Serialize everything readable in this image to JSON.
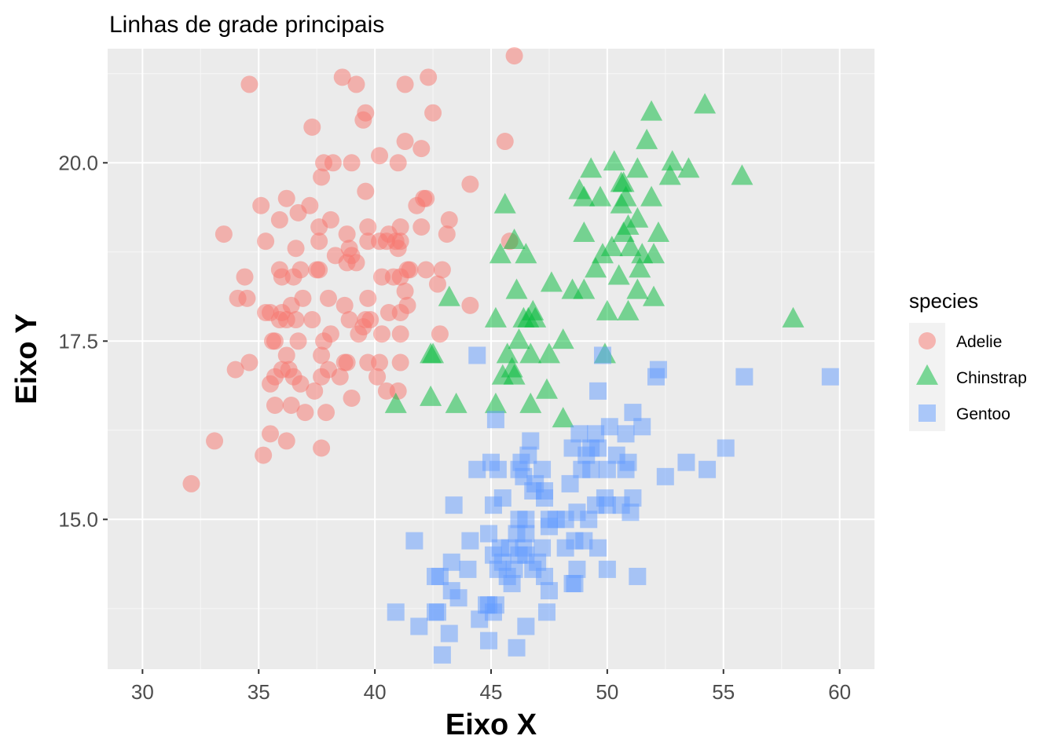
{
  "chart_data": {
    "type": "scatter",
    "title": "Linhas de grade principais",
    "xlabel": "Eixo X",
    "ylabel": "Eixo Y",
    "xlim": [
      28.5,
      61.5
    ],
    "ylim": [
      12.9,
      21.6
    ],
    "x_ticks": [
      30,
      35,
      40,
      45,
      50,
      55,
      60
    ],
    "x_tick_labels": [
      "30",
      "35",
      "40",
      "45",
      "50",
      "55",
      "60"
    ],
    "y_ticks": [
      15.0,
      17.5,
      20.0
    ],
    "y_tick_labels": [
      "15.0",
      "17.5",
      "20.0"
    ],
    "grid": true,
    "legend_title": "species",
    "legend_position": "right",
    "background": "#ebebeb",
    "series": [
      {
        "name": "Adelie",
        "shape": "circle",
        "color": "#f8766d",
        "points": [
          [
            46.0,
            21.5
          ],
          [
            38.6,
            21.2
          ],
          [
            34.6,
            21.1
          ],
          [
            39.2,
            21.1
          ],
          [
            41.3,
            21.1
          ],
          [
            42.3,
            21.2
          ],
          [
            39.6,
            20.7
          ],
          [
            42.5,
            20.7
          ],
          [
            39.5,
            20.6
          ],
          [
            37.3,
            20.5
          ],
          [
            45.6,
            20.3
          ],
          [
            41.3,
            20.3
          ],
          [
            42.0,
            20.2
          ],
          [
            40.2,
            20.1
          ],
          [
            37.8,
            20.0
          ],
          [
            38.2,
            20.0
          ],
          [
            39.0,
            20.0
          ],
          [
            41.0,
            20.0
          ],
          [
            37.7,
            19.8
          ],
          [
            44.1,
            19.7
          ],
          [
            39.6,
            19.6
          ],
          [
            36.2,
            19.5
          ],
          [
            42.1,
            19.5
          ],
          [
            42.2,
            19.5
          ],
          [
            35.1,
            19.4
          ],
          [
            37.2,
            19.4
          ],
          [
            41.8,
            19.4
          ],
          [
            36.7,
            19.3
          ],
          [
            38.1,
            19.2
          ],
          [
            35.9,
            19.2
          ],
          [
            43.2,
            19.2
          ],
          [
            42.0,
            19.1
          ],
          [
            37.6,
            19.1
          ],
          [
            39.7,
            19.1
          ],
          [
            41.1,
            19.1
          ],
          [
            40.6,
            19.0
          ],
          [
            33.5,
            19.0
          ],
          [
            38.8,
            19.0
          ],
          [
            43.1,
            19.0
          ],
          [
            41.1,
            18.9
          ],
          [
            35.3,
            18.9
          ],
          [
            40.2,
            18.9
          ],
          [
            37.6,
            18.9
          ],
          [
            40.5,
            18.9
          ],
          [
            39.7,
            18.9
          ],
          [
            40.9,
            18.9
          ],
          [
            36.6,
            18.8
          ],
          [
            38.9,
            18.8
          ],
          [
            45.8,
            18.9
          ],
          [
            41.0,
            18.8
          ],
          [
            38.3,
            18.7
          ],
          [
            39.0,
            18.7
          ],
          [
            38.8,
            18.6
          ],
          [
            36.8,
            18.5
          ],
          [
            41.5,
            18.5
          ],
          [
            42.2,
            18.5
          ],
          [
            42.9,
            18.5
          ],
          [
            35.9,
            18.5
          ],
          [
            39.2,
            18.6
          ],
          [
            37.5,
            18.5
          ],
          [
            36.0,
            18.4
          ],
          [
            34.4,
            18.4
          ],
          [
            41.4,
            18.5
          ],
          [
            40.3,
            18.4
          ],
          [
            36.5,
            18.4
          ],
          [
            37.6,
            18.5
          ],
          [
            41.1,
            18.4
          ],
          [
            40.8,
            18.4
          ],
          [
            42.7,
            18.3
          ],
          [
            38.7,
            18.0
          ],
          [
            34.1,
            18.1
          ],
          [
            34.5,
            18.1
          ],
          [
            36.4,
            18.0
          ],
          [
            36.9,
            18.1
          ],
          [
            39.7,
            18.1
          ],
          [
            41.4,
            18.0
          ],
          [
            38.0,
            18.1
          ],
          [
            41.3,
            18.2
          ],
          [
            35.5,
            17.9
          ],
          [
            35.3,
            17.9
          ],
          [
            36.0,
            17.9
          ],
          [
            38.9,
            17.8
          ],
          [
            37.3,
            17.8
          ],
          [
            39.6,
            17.8
          ],
          [
            36.2,
            17.8
          ],
          [
            35.9,
            17.8
          ],
          [
            40.6,
            17.9
          ],
          [
            41.1,
            17.9
          ],
          [
            36.6,
            17.8
          ],
          [
            39.8,
            17.8
          ],
          [
            44.1,
            18.0
          ],
          [
            39.3,
            17.6
          ],
          [
            38.1,
            17.6
          ],
          [
            39.5,
            17.7
          ],
          [
            41.1,
            17.6
          ],
          [
            42.8,
            17.6
          ],
          [
            40.3,
            17.6
          ],
          [
            36.7,
            17.5
          ],
          [
            35.7,
            17.5
          ],
          [
            35.6,
            17.5
          ],
          [
            37.8,
            17.5
          ],
          [
            37.7,
            17.3
          ],
          [
            36.2,
            17.3
          ],
          [
            40.2,
            17.2
          ],
          [
            38.7,
            17.2
          ],
          [
            39.7,
            17.2
          ],
          [
            41.1,
            17.2
          ],
          [
            34.6,
            17.2
          ],
          [
            38.8,
            17.2
          ],
          [
            36.3,
            17.1
          ],
          [
            34.0,
            17.1
          ],
          [
            36.0,
            17.1
          ],
          [
            36.5,
            17.0
          ],
          [
            35.7,
            17.0
          ],
          [
            38.5,
            17.0
          ],
          [
            40.1,
            17.0
          ],
          [
            37.7,
            17.0
          ],
          [
            38.0,
            17.1
          ],
          [
            36.8,
            16.9
          ],
          [
            35.5,
            16.9
          ],
          [
            40.5,
            16.8
          ],
          [
            37.4,
            16.8
          ],
          [
            41.0,
            16.8
          ],
          [
            39.0,
            16.7
          ],
          [
            35.7,
            16.6
          ],
          [
            36.4,
            16.6
          ],
          [
            37.0,
            16.5
          ],
          [
            37.9,
            16.5
          ],
          [
            35.5,
            16.2
          ],
          [
            36.2,
            16.1
          ],
          [
            33.1,
            16.1
          ],
          [
            37.7,
            16.0
          ],
          [
            35.2,
            15.9
          ],
          [
            32.1,
            15.5
          ]
        ]
      },
      {
        "name": "Chinstrap",
        "shape": "triangle",
        "color": "#00ba38",
        "points": [
          [
            54.2,
            20.8
          ],
          [
            51.9,
            20.7
          ],
          [
            51.7,
            20.3
          ],
          [
            52.8,
            20.0
          ],
          [
            53.5,
            19.9
          ],
          [
            50.3,
            20.0
          ],
          [
            51.3,
            19.9
          ],
          [
            49.3,
            19.9
          ],
          [
            50.6,
            19.4
          ],
          [
            49.0,
            19.5
          ],
          [
            49.7,
            19.5
          ],
          [
            50.6,
            19.7
          ],
          [
            50.8,
            19.5
          ],
          [
            51.9,
            19.5
          ],
          [
            52.7,
            19.8
          ],
          [
            50.7,
            19.7
          ],
          [
            55.8,
            19.8
          ],
          [
            45.6,
            19.4
          ],
          [
            48.8,
            19.6
          ],
          [
            51.3,
            19.2
          ],
          [
            50.9,
            19.1
          ],
          [
            51.5,
            18.7
          ],
          [
            49.0,
            19.0
          ],
          [
            50.7,
            19.0
          ],
          [
            52.2,
            19.0
          ],
          [
            51.0,
            18.8
          ],
          [
            52.0,
            18.7
          ],
          [
            50.2,
            18.8
          ],
          [
            46.0,
            18.9
          ],
          [
            45.4,
            18.7
          ],
          [
            49.8,
            18.7
          ],
          [
            51.4,
            18.5
          ],
          [
            46.5,
            18.7
          ],
          [
            50.5,
            18.4
          ],
          [
            49.5,
            18.5
          ],
          [
            47.6,
            18.3
          ],
          [
            46.1,
            18.2
          ],
          [
            48.5,
            18.2
          ],
          [
            49.0,
            18.2
          ],
          [
            51.3,
            18.2
          ],
          [
            52.0,
            18.1
          ],
          [
            43.2,
            18.1
          ],
          [
            58.0,
            17.8
          ],
          [
            45.2,
            17.8
          ],
          [
            46.6,
            17.8
          ],
          [
            46.8,
            17.9
          ],
          [
            50.0,
            17.9
          ],
          [
            50.9,
            17.9
          ],
          [
            46.4,
            17.8
          ],
          [
            46.9,
            17.8
          ],
          [
            45.9,
            17.1
          ],
          [
            46.2,
            17.5
          ],
          [
            48.1,
            17.5
          ],
          [
            46.7,
            17.3
          ],
          [
            47.5,
            17.3
          ],
          [
            49.9,
            17.3
          ],
          [
            42.4,
            17.3
          ],
          [
            42.5,
            17.3
          ],
          [
            45.7,
            17.3
          ],
          [
            46.0,
            17.0
          ],
          [
            45.5,
            17.0
          ],
          [
            47.4,
            16.8
          ],
          [
            42.4,
            16.7
          ],
          [
            40.9,
            16.6
          ],
          [
            45.2,
            16.6
          ],
          [
            46.7,
            16.6
          ],
          [
            43.5,
            16.6
          ],
          [
            48.1,
            16.4
          ]
        ]
      },
      {
        "name": "Gentoo",
        "shape": "square",
        "color": "#619cff",
        "points": [
          [
            59.6,
            17.0
          ],
          [
            55.9,
            17.0
          ],
          [
            52.2,
            17.1
          ],
          [
            52.1,
            17.0
          ],
          [
            49.8,
            17.3
          ],
          [
            44.4,
            17.3
          ],
          [
            49.6,
            16.8
          ],
          [
            50.1,
            16.3
          ],
          [
            51.1,
            16.5
          ],
          [
            51.5,
            16.3
          ],
          [
            50.8,
            16.2
          ],
          [
            48.8,
            16.2
          ],
          [
            49.3,
            16.0
          ],
          [
            48.5,
            16.0
          ],
          [
            49.6,
            16.0
          ],
          [
            49.1,
            15.9
          ],
          [
            50.4,
            15.9
          ],
          [
            50.9,
            15.8
          ],
          [
            49.5,
            16.2
          ],
          [
            48.9,
            15.7
          ],
          [
            50.0,
            15.7
          ],
          [
            46.6,
            15.9
          ],
          [
            45.3,
            15.7
          ],
          [
            47.2,
            15.7
          ],
          [
            48.4,
            15.5
          ],
          [
            50.8,
            15.7
          ],
          [
            51.1,
            15.3
          ],
          [
            49.3,
            15.7
          ],
          [
            46.2,
            15.7
          ],
          [
            45.5,
            15.3
          ],
          [
            52.5,
            15.6
          ],
          [
            53.4,
            15.8
          ],
          [
            54.3,
            15.7
          ],
          [
            55.1,
            16.0
          ],
          [
            44.4,
            15.7
          ],
          [
            46.4,
            15.6
          ],
          [
            46.9,
            15.5
          ],
          [
            46.8,
            15.4
          ],
          [
            47.3,
            15.3
          ],
          [
            45.1,
            15.2
          ],
          [
            46.2,
            15.0
          ],
          [
            48.2,
            15.0
          ],
          [
            48.7,
            15.1
          ],
          [
            49.5,
            15.2
          ],
          [
            50.0,
            15.2
          ],
          [
            50.6,
            15.2
          ],
          [
            51.0,
            15.1
          ],
          [
            49.9,
            15.3
          ],
          [
            47.8,
            15.0
          ],
          [
            47.5,
            15.0
          ],
          [
            49.2,
            15.0
          ],
          [
            46.5,
            15.0
          ],
          [
            46.1,
            14.8
          ],
          [
            44.9,
            14.8
          ],
          [
            46.4,
            14.6
          ],
          [
            45.5,
            14.4
          ],
          [
            45.7,
            14.2
          ],
          [
            47.2,
            14.6
          ],
          [
            48.2,
            14.6
          ],
          [
            49.6,
            14.6
          ],
          [
            48.7,
            14.3
          ],
          [
            50.0,
            14.3
          ],
          [
            45.1,
            14.5
          ],
          [
            46.5,
            14.5
          ],
          [
            45.8,
            14.6
          ],
          [
            46.2,
            14.5
          ],
          [
            45.3,
            14.3
          ],
          [
            44.0,
            14.3
          ],
          [
            43.3,
            14.0
          ],
          [
            42.7,
            13.7
          ],
          [
            42.8,
            14.2
          ],
          [
            43.6,
            13.9
          ],
          [
            43.3,
            14.4
          ],
          [
            44.9,
            13.8
          ],
          [
            45.1,
            13.7
          ],
          [
            46.5,
            13.5
          ],
          [
            46.1,
            13.2
          ],
          [
            44.9,
            13.3
          ],
          [
            43.2,
            13.4
          ],
          [
            42.9,
            13.1
          ],
          [
            40.9,
            13.7
          ],
          [
            41.9,
            13.5
          ],
          [
            42.6,
            13.7
          ],
          [
            44.5,
            13.6
          ],
          [
            45.2,
            13.8
          ],
          [
            47.4,
            13.7
          ],
          [
            47.5,
            14.0
          ],
          [
            48.5,
            14.1
          ],
          [
            48.6,
            14.1
          ],
          [
            47.3,
            14.2
          ],
          [
            46.8,
            14.3
          ],
          [
            49.0,
            14.7
          ],
          [
            44.1,
            14.7
          ],
          [
            42.6,
            14.2
          ],
          [
            41.7,
            14.7
          ],
          [
            43.4,
            15.2
          ],
          [
            51.3,
            14.2
          ],
          [
            46.3,
            15.8
          ],
          [
            47.3,
            15.4
          ],
          [
            46.5,
            14.8
          ],
          [
            47.5,
            14.9
          ],
          [
            48.6,
            14.7
          ],
          [
            45.4,
            14.6
          ],
          [
            46.0,
            14.3
          ],
          [
            45.9,
            14.1
          ],
          [
            44.8,
            13.8
          ],
          [
            47.0,
            14.4
          ],
          [
            45.0,
            15.8
          ],
          [
            45.2,
            16.4
          ],
          [
            46.7,
            16.1
          ]
        ]
      }
    ]
  }
}
